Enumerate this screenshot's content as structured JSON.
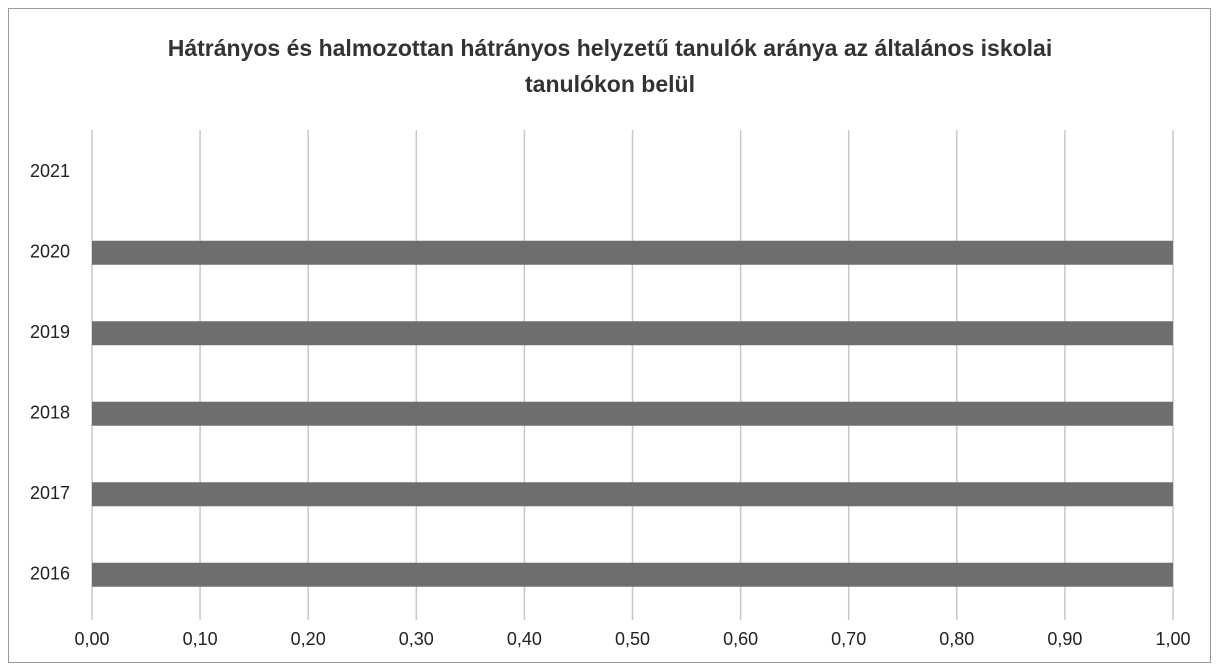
{
  "chart_data": {
    "type": "barh",
    "title": "Hátrányos és halmozottan hátrányos helyzetű  tanulók aránya az általános iskolai tanulókon belül",
    "categories": [
      "2016",
      "2017",
      "2018",
      "2019",
      "2020",
      "2021"
    ],
    "values": [
      1.0,
      1.0,
      1.0,
      1.0,
      1.0,
      null
    ],
    "color": "#6e6e6e",
    "xlim": [
      0,
      1
    ],
    "xticks": [
      {
        "value": 0,
        "label": "0,00"
      },
      {
        "value": 0.1,
        "label": "0,10"
      },
      {
        "value": 0.2,
        "label": "0,20"
      },
      {
        "value": 0.3,
        "label": "0,30"
      },
      {
        "value": 0.4,
        "label": "0,40"
      },
      {
        "value": 0.5,
        "label": "0,50"
      },
      {
        "value": 0.6,
        "label": "0,60"
      },
      {
        "value": 0.7,
        "label": "0,70"
      },
      {
        "value": 0.8,
        "label": "0,80"
      },
      {
        "value": 0.9,
        "label": "0,90"
      },
      {
        "value": 1,
        "label": "1,00"
      }
    ],
    "grid": true
  }
}
